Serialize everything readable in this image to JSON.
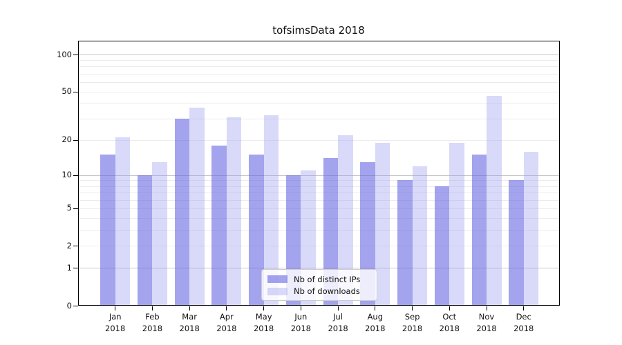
{
  "chart_data": {
    "type": "bar",
    "title": "tofsimsData 2018",
    "categories": [
      "Jan",
      "Feb",
      "Mar",
      "Apr",
      "May",
      "Jun",
      "Jul",
      "Aug",
      "Sep",
      "Oct",
      "Nov",
      "Dec"
    ],
    "category_sub_label": "2018",
    "series": [
      {
        "name": "Nb of distinct IPs",
        "values": [
          15,
          10,
          30,
          18,
          15,
          10,
          14,
          13,
          9,
          8,
          15,
          9
        ],
        "fill": "rgba(102,102,227,0.60)"
      },
      {
        "name": "Nb of downloads",
        "values": [
          21,
          13,
          37,
          31,
          32,
          11,
          22,
          19,
          12,
          19,
          46,
          16
        ],
        "fill": "rgba(155,155,238,0.38)"
      }
    ],
    "y_scale": "log10(1+x)",
    "ylim": [
      0,
      130
    ],
    "y_tick_labels": [
      100,
      50,
      20,
      10,
      5,
      2,
      1,
      0
    ],
    "y_major_gridlines": [
      1,
      10,
      100
    ],
    "y_minor_gridlines": [
      2,
      3,
      4,
      5,
      6,
      7,
      8,
      9,
      20,
      30,
      40,
      50,
      60,
      70,
      80,
      90
    ],
    "grid": {
      "major_color": "#c6c6c6",
      "minor_color": "#ececec"
    },
    "legend": {
      "position": "lower center"
    },
    "axis_color": "#000000",
    "text_color": "#111111"
  }
}
